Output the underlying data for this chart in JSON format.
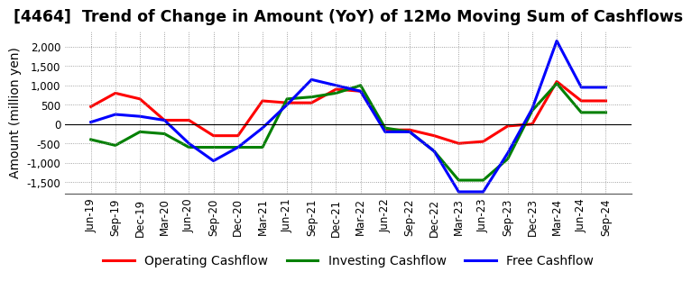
{
  "title": "[4464]  Trend of Change in Amount (YoY) of 12Mo Moving Sum of Cashflows",
  "ylabel": "Amount (million yen)",
  "x_labels": [
    "Jun-19",
    "Sep-19",
    "Dec-19",
    "Mar-20",
    "Jun-20",
    "Sep-20",
    "Dec-20",
    "Mar-21",
    "Jun-21",
    "Sep-21",
    "Dec-21",
    "Mar-22",
    "Jun-22",
    "Sep-22",
    "Dec-22",
    "Mar-23",
    "Jun-23",
    "Sep-23",
    "Dec-23",
    "Mar-24",
    "Jun-24",
    "Sep-24"
  ],
  "operating": [
    450,
    800,
    650,
    100,
    100,
    -300,
    -300,
    600,
    550,
    550,
    900,
    850,
    -150,
    -150,
    -300,
    -500,
    -450,
    -50,
    0,
    1100,
    600,
    600
  ],
  "investing": [
    -400,
    -550,
    -200,
    -250,
    -600,
    -600,
    -600,
    -600,
    650,
    700,
    800,
    1000,
    -100,
    -200,
    -700,
    -1450,
    -1450,
    -900,
    350,
    1050,
    300,
    300
  ],
  "free": [
    50,
    250,
    200,
    100,
    -500,
    -950,
    -600,
    -100,
    500,
    1150,
    1000,
    850,
    -200,
    -200,
    -700,
    -1750,
    -1750,
    -750,
    400,
    2150,
    950,
    950
  ],
  "operating_color": "#ff0000",
  "investing_color": "#008000",
  "free_color": "#0000ff",
  "ylim": [
    -1800,
    2400
  ],
  "yticks": [
    -1500,
    -1000,
    -500,
    0,
    500,
    1000,
    1500,
    2000
  ],
  "grid_color": "#888888",
  "bg_color": "#ffffff",
  "linewidth": 2.2,
  "title_fontsize": 12.5,
  "legend_fontsize": 10,
  "axis_fontsize": 8.5,
  "ylabel_fontsize": 10
}
